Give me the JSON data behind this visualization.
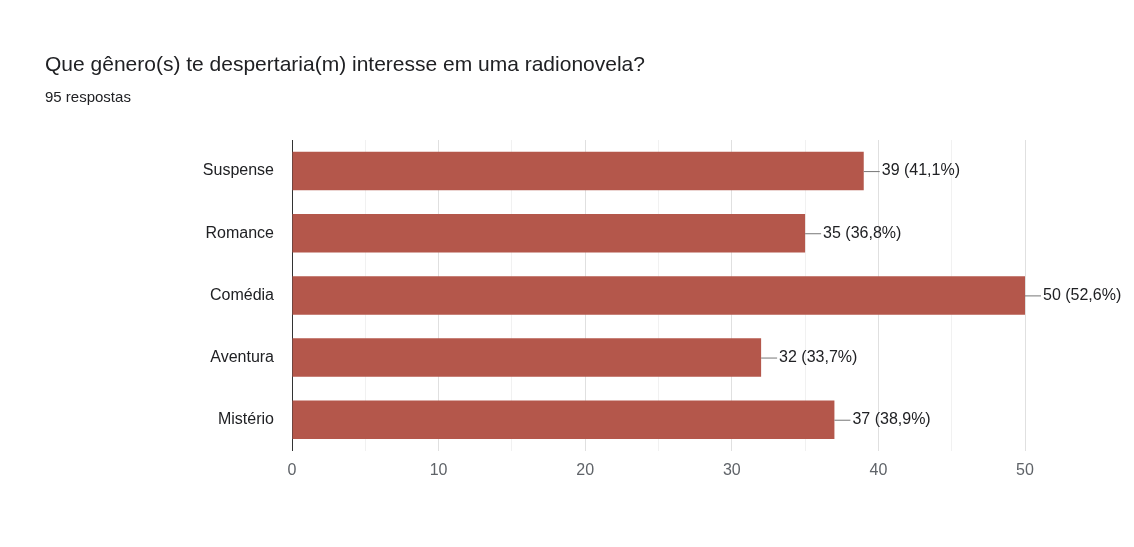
{
  "chart_data": {
    "type": "bar",
    "orientation": "horizontal",
    "title": "Que gênero(s) te despertaria(m) interesse em uma radionovela?",
    "subtitle": "95 respostas",
    "categories": [
      "Suspense",
      "Romance",
      "Comédia",
      "Aventura",
      "Mistério"
    ],
    "values": [
      39,
      35,
      50,
      32,
      37
    ],
    "value_labels": [
      "39 (41,1%)",
      "35 (36,8%)",
      "50 (52,6%)",
      "32 (33,7%)",
      "37 (38,9%)"
    ],
    "color": "#b4574b",
    "xlim": [
      0,
      50
    ],
    "xticks": [
      0,
      {
        "value": 5,
        "label": null
      },
      10,
      {
        "value": 15,
        "label": null
      },
      20,
      {
        "value": 25,
        "label": null
      },
      30,
      {
        "value": 35,
        "label": null
      },
      40,
      {
        "value": 45,
        "label": null
      },
      50
    ],
    "grid": "x"
  }
}
